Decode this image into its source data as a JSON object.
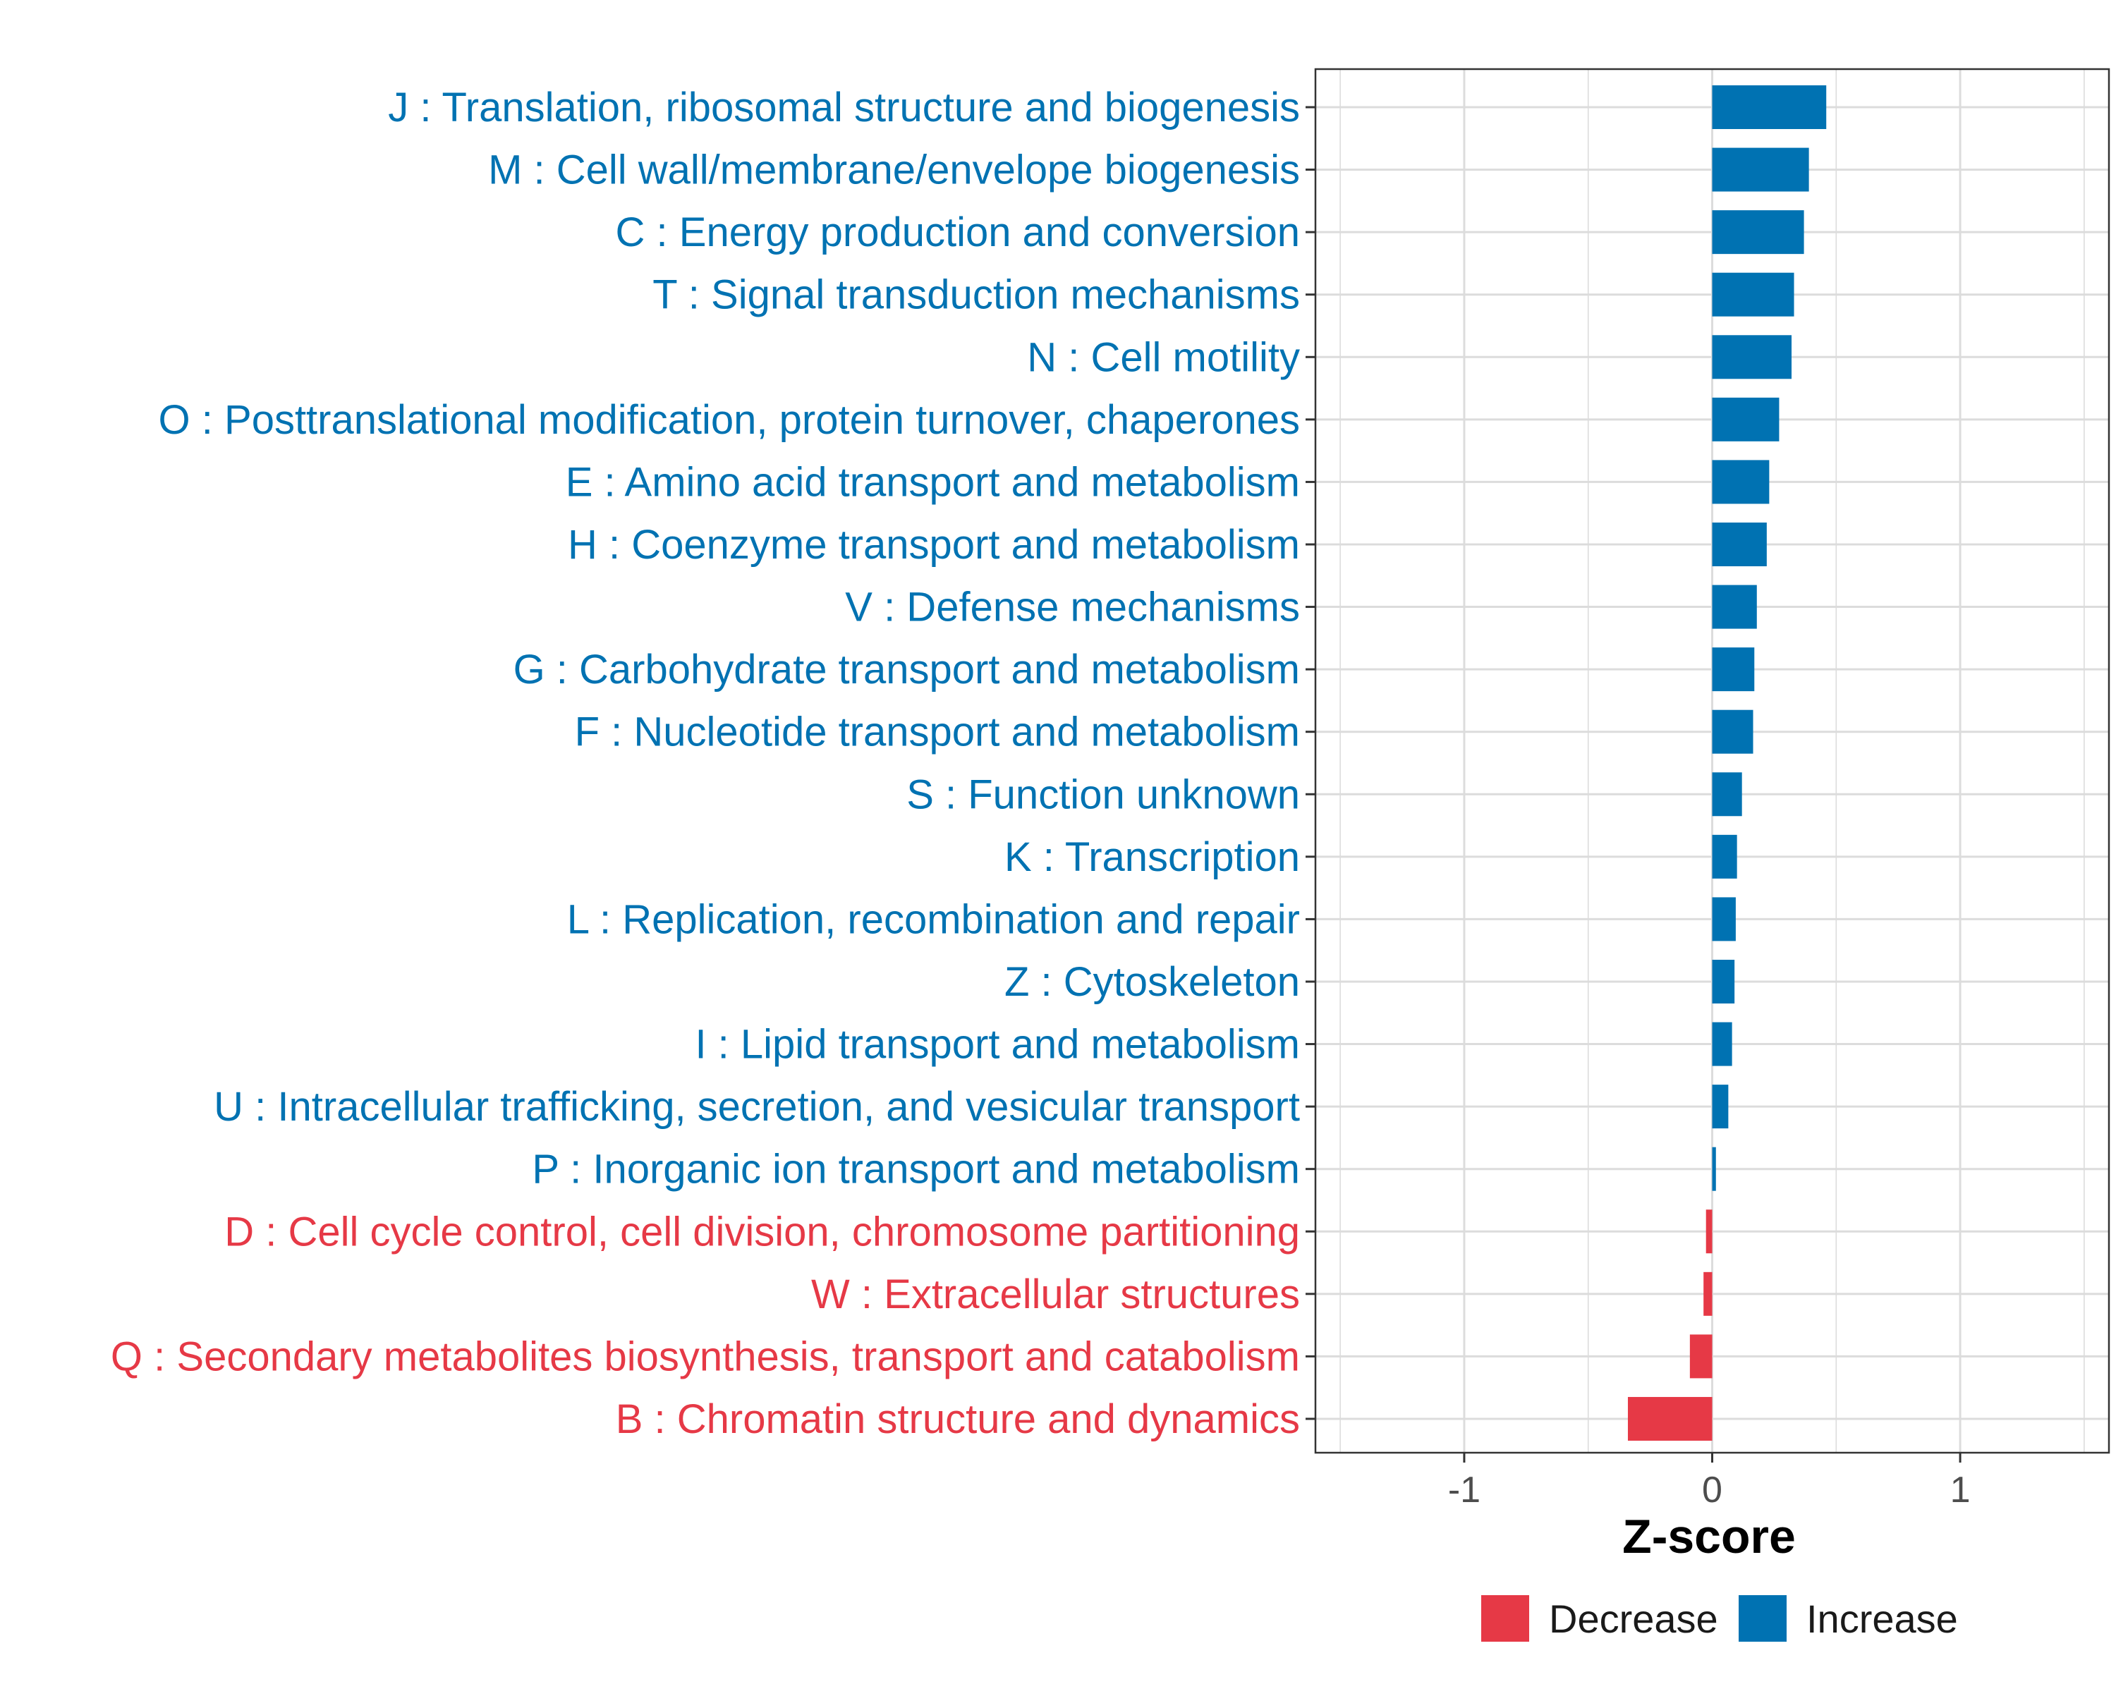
{
  "chart_data": {
    "type": "bar",
    "orientation": "horizontal",
    "title": "",
    "xlabel": "Z-score",
    "ylabel": "",
    "xlim": [
      -1.6,
      1.6
    ],
    "xticks": [
      -1,
      0,
      1
    ],
    "xtick_labels": [
      "-1",
      "0",
      "1"
    ],
    "grid": true,
    "legend_position": "bottom",
    "colors": {
      "Increase": "#0072b2",
      "Decrease": "#e63946"
    },
    "categories": [
      "J : Translation, ribosomal structure and biogenesis",
      "M : Cell wall/membrane/envelope biogenesis",
      "C : Energy production and conversion",
      "T : Signal transduction mechanisms",
      "N : Cell motility",
      "O : Posttranslational modification, protein turnover, chaperones",
      "E : Amino acid transport and metabolism",
      "H : Coenzyme transport and metabolism",
      "V : Defense mechanisms",
      "G : Carbohydrate transport and metabolism",
      "F : Nucleotide transport and metabolism",
      "S : Function unknown",
      "K : Transcription",
      "L : Replication, recombination and repair",
      "Z : Cytoskeleton",
      "I : Lipid transport and metabolism",
      "U : Intracellular trafficking, secretion, and vesicular transport",
      "P : Inorganic ion transport and metabolism",
      "D : Cell cycle control, cell division, chromosome partitioning",
      "W : Extracellular structures",
      "Q : Secondary metabolites biosynthesis, transport and catabolism",
      "B : Chromatin structure and dynamics"
    ],
    "values": [
      0.46,
      0.39,
      0.37,
      0.33,
      0.32,
      0.27,
      0.23,
      0.22,
      0.18,
      0.17,
      0.165,
      0.12,
      0.1,
      0.095,
      0.09,
      0.08,
      0.065,
      0.015,
      -0.025,
      -0.035,
      -0.09,
      -0.34
    ],
    "groups": [
      "Increase",
      "Increase",
      "Increase",
      "Increase",
      "Increase",
      "Increase",
      "Increase",
      "Increase",
      "Increase",
      "Increase",
      "Increase",
      "Increase",
      "Increase",
      "Increase",
      "Increase",
      "Increase",
      "Increase",
      "Increase",
      "Decrease",
      "Decrease",
      "Decrease",
      "Decrease"
    ],
    "legend": [
      "Decrease",
      "Increase"
    ]
  }
}
